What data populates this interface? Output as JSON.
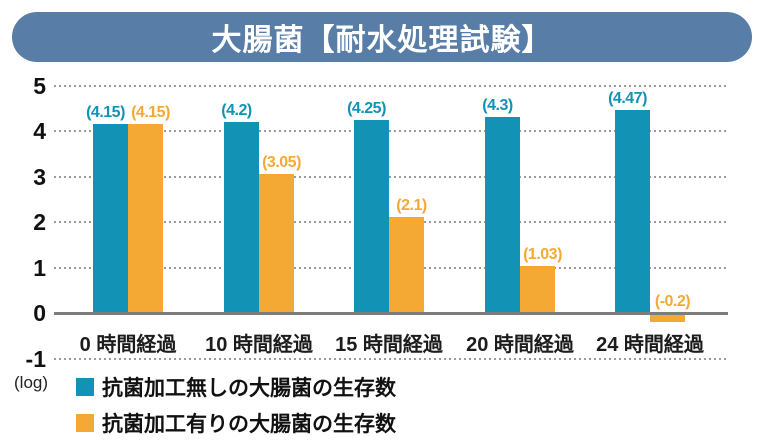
{
  "title": "大腸菌【耐水処理試験】",
  "colors": {
    "banner": "#587DA7",
    "series1": "#1292B4",
    "series2": "#F5A935",
    "gridline": "#9A9A9A",
    "zero_line": "#7D7D7D"
  },
  "chart_data": {
    "type": "bar",
    "title": "大腸菌【耐水処理試験】",
    "categories": [
      "0 時間経過",
      "10 時間経過",
      "15 時間経過",
      "20 時間経過",
      "24 時間経過"
    ],
    "series": [
      {
        "name": "抗菌加工無しの大腸菌の生存数",
        "color": "#1292B4",
        "values": [
          4.15,
          4.2,
          4.25,
          4.3,
          4.47
        ],
        "value_labels": [
          "(4.15)",
          "(4.2)",
          "(4.25)",
          "(4.3)",
          "(4.47)"
        ]
      },
      {
        "name": "抗菌加工有りの大腸菌の生存数",
        "color": "#F5A935",
        "values": [
          4.15,
          3.05,
          2.1,
          1.03,
          -0.2
        ],
        "value_labels": [
          "(4.15)",
          "(3.05)",
          "(2.1)",
          "(1.03)",
          "(-0.2)"
        ]
      }
    ],
    "ylabel": "(log)",
    "ylim": [
      -1,
      5
    ],
    "yticks": [
      5,
      4,
      3,
      2,
      1,
      0,
      -1
    ],
    "grid": "horizontal-dotted",
    "legend_position": "bottom-left"
  }
}
